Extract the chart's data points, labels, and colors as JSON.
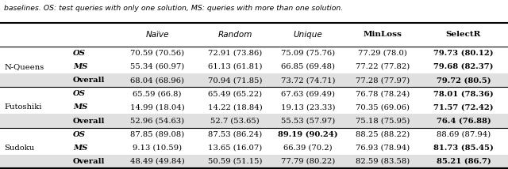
{
  "caption": "baselines. OS: test queries with only one solution, MS: queries with more than one solution.",
  "col_headers": [
    "Naïve",
    "Random",
    "Unique",
    "MinLoss",
    "SelectR"
  ],
  "rows": [
    {
      "group": "N-Queens",
      "group_row": true,
      "sub": "OS",
      "sub_italic": true,
      "sub_bold": false,
      "values": [
        "70.59 (70.56)",
        "72.91 (73.86)",
        "75.09 (75.76)",
        "77.29 (78.0)",
        "79.73 (80.12)"
      ],
      "bold_col": [
        false,
        false,
        false,
        false,
        true
      ],
      "shaded": false
    },
    {
      "group": "",
      "group_row": false,
      "sub": "MS",
      "sub_italic": true,
      "sub_bold": false,
      "values": [
        "55.34 (60.97)",
        "61.13 (61.81)",
        "66.85 (69.48)",
        "77.22 (77.82)",
        "79.68 (82.37)"
      ],
      "bold_col": [
        false,
        false,
        false,
        false,
        true
      ],
      "shaded": false
    },
    {
      "group": "",
      "group_row": false,
      "sub": "Overall",
      "sub_italic": false,
      "sub_bold": true,
      "values": [
        "68.04 (68.96)",
        "70.94 (71.85)",
        "73.72 (74.71)",
        "77.28 (77.97)",
        "79.72 (80.5)"
      ],
      "bold_col": [
        false,
        false,
        false,
        false,
        true
      ],
      "shaded": true
    },
    {
      "group": "Futoshiki",
      "group_row": true,
      "sub": "OS",
      "sub_italic": true,
      "sub_bold": false,
      "values": [
        "65.59 (66.8)",
        "65.49 (65.22)",
        "67.63 (69.49)",
        "76.78 (78.24)",
        "78.01 (78.36)"
      ],
      "bold_col": [
        false,
        false,
        false,
        false,
        true
      ],
      "shaded": false
    },
    {
      "group": "",
      "group_row": false,
      "sub": "MS",
      "sub_italic": true,
      "sub_bold": false,
      "values": [
        "14.99 (18.04)",
        "14.22 (18.84)",
        "19.13 (23.33)",
        "70.35 (69.06)",
        "71.57 (72.42)"
      ],
      "bold_col": [
        false,
        false,
        false,
        false,
        true
      ],
      "shaded": false
    },
    {
      "group": "",
      "group_row": false,
      "sub": "Overall",
      "sub_italic": false,
      "sub_bold": true,
      "values": [
        "52.96 (54.63)",
        "52.7 (53.65)",
        "55.53 (57.97)",
        "75.18 (75.95)",
        "76.4 (76.88)"
      ],
      "bold_col": [
        false,
        false,
        false,
        false,
        true
      ],
      "shaded": true
    },
    {
      "group": "Sudoku",
      "group_row": true,
      "sub": "OS",
      "sub_italic": true,
      "sub_bold": false,
      "values": [
        "87.85 (89.08)",
        "87.53 (86.24)",
        "89.19 (90.24)",
        "88.25 (88.22)",
        "88.69 (87.94)"
      ],
      "bold_col": [
        false,
        false,
        true,
        false,
        false
      ],
      "shaded": false
    },
    {
      "group": "",
      "group_row": false,
      "sub": "MS",
      "sub_italic": true,
      "sub_bold": false,
      "values": [
        "9.13 (10.59)",
        "13.65 (16.07)",
        "66.39 (70.2)",
        "76.93 (78.94)",
        "81.73 (85.45)"
      ],
      "bold_col": [
        false,
        false,
        false,
        false,
        true
      ],
      "shaded": false
    },
    {
      "group": "",
      "group_row": false,
      "sub": "Overall",
      "sub_italic": false,
      "sub_bold": true,
      "values": [
        "48.49 (49.84)",
        "50.59 (51.15)",
        "77.79 (80.22)",
        "82.59 (83.58)",
        "85.21 (86.7)"
      ],
      "bold_col": [
        false,
        false,
        false,
        false,
        true
      ],
      "shaded": true
    }
  ],
  "group_centers": [
    1,
    4,
    7
  ],
  "divider_rows": [
    3,
    6
  ],
  "shade_color": "#e0e0e0",
  "fs": 7.2,
  "fs_hdr": 7.5
}
